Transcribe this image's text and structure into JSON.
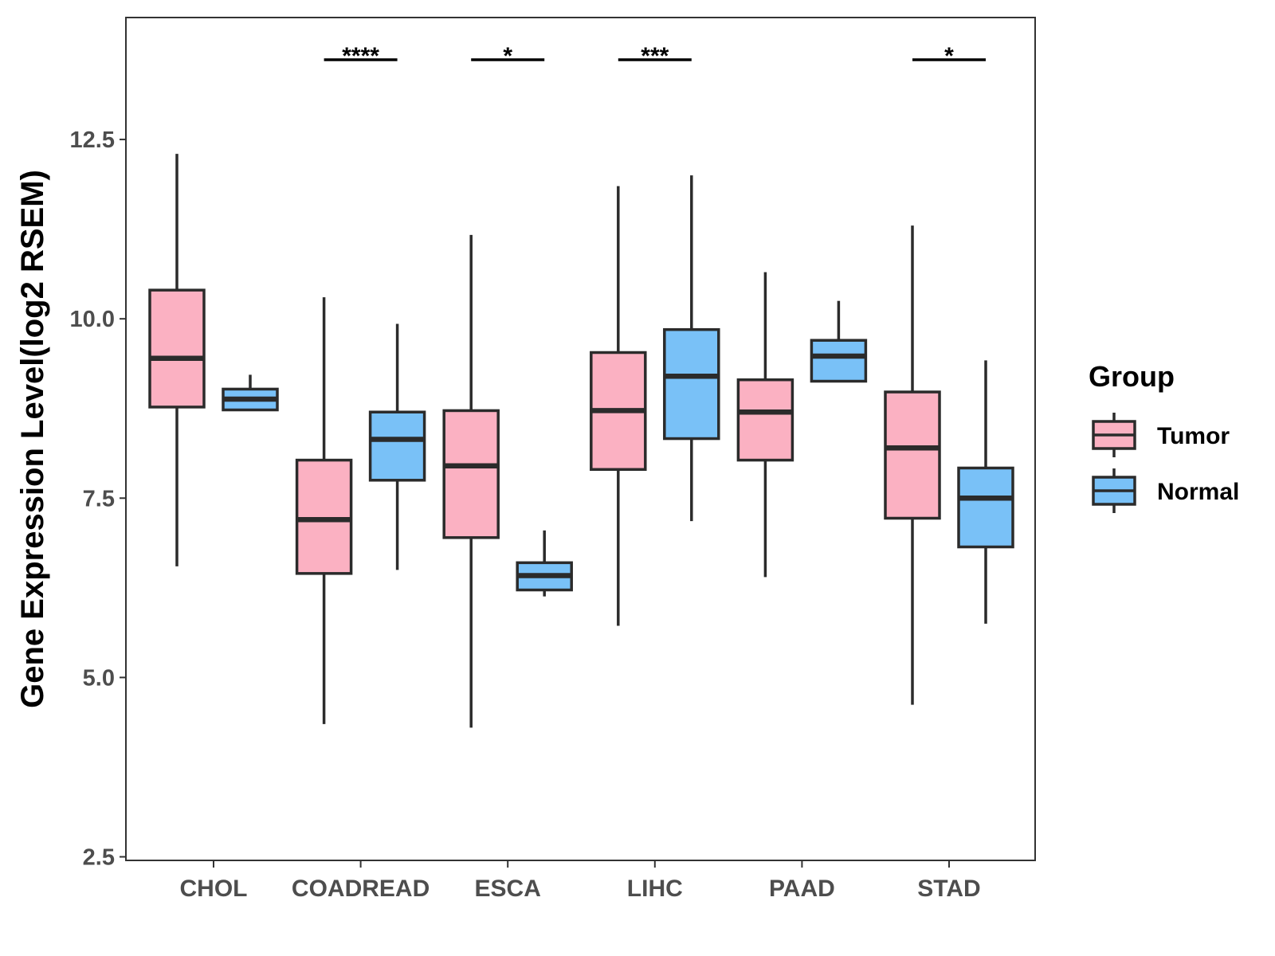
{
  "chart_data": {
    "type": "boxplot",
    "ylabel": "Gene Expression Level(log2 RSEM)",
    "xlabel": "",
    "ylim": [
      2.45,
      14.2
    ],
    "yticks": [
      2.5,
      5.0,
      7.5,
      10.0,
      12.5
    ],
    "ytick_labels": [
      "2.5",
      "5.0",
      "7.5",
      "10.0",
      "12.5"
    ],
    "categories": [
      "CHOL",
      "COADREAD",
      "ESCA",
      "LIHC",
      "PAAD",
      "STAD"
    ],
    "legend": {
      "title": "Group",
      "position": "right",
      "entries": [
        {
          "name": "Tumor",
          "color": "#fbb1c2"
        },
        {
          "name": "Normal",
          "color": "#79c1f7"
        }
      ]
    },
    "series": [
      {
        "name": "Tumor",
        "color": "#fbb1c2",
        "boxes": [
          {
            "category": "CHOL",
            "whisker_low": 6.55,
            "q1": 8.77,
            "median": 9.45,
            "q3": 10.4,
            "whisker_high": 12.3
          },
          {
            "category": "COADREAD",
            "whisker_low": 4.35,
            "q1": 6.45,
            "median": 7.2,
            "q3": 8.03,
            "whisker_high": 10.3
          },
          {
            "category": "ESCA",
            "whisker_low": 4.3,
            "q1": 6.95,
            "median": 7.95,
            "q3": 8.72,
            "whisker_high": 11.17
          },
          {
            "category": "LIHC",
            "whisker_low": 5.72,
            "q1": 7.9,
            "median": 8.72,
            "q3": 9.53,
            "whisker_high": 11.85
          },
          {
            "category": "PAAD",
            "whisker_low": 6.4,
            "q1": 8.03,
            "median": 8.7,
            "q3": 9.15,
            "whisker_high": 10.65
          },
          {
            "category": "STAD",
            "whisker_low": 4.62,
            "q1": 7.22,
            "median": 8.2,
            "q3": 8.98,
            "whisker_high": 11.3
          }
        ]
      },
      {
        "name": "Normal",
        "color": "#79c1f7",
        "boxes": [
          {
            "category": "CHOL",
            "whisker_low": 8.73,
            "q1": 8.73,
            "median": 8.88,
            "q3": 9.02,
            "whisker_high": 9.22
          },
          {
            "category": "COADREAD",
            "whisker_low": 6.5,
            "q1": 7.75,
            "median": 8.32,
            "q3": 8.7,
            "whisker_high": 9.93
          },
          {
            "category": "ESCA",
            "whisker_low": 6.13,
            "q1": 6.22,
            "median": 6.42,
            "q3": 6.6,
            "whisker_high": 7.05
          },
          {
            "category": "LIHC",
            "whisker_low": 7.18,
            "q1": 8.33,
            "median": 9.2,
            "q3": 9.85,
            "whisker_high": 12.0
          },
          {
            "category": "PAAD",
            "whisker_low": 9.13,
            "q1": 9.13,
            "median": 9.48,
            "q3": 9.7,
            "whisker_high": 10.25
          },
          {
            "category": "STAD",
            "whisker_low": 5.75,
            "q1": 6.82,
            "median": 7.5,
            "q3": 7.92,
            "whisker_high": 9.42
          }
        ]
      }
    ],
    "annotations": [
      {
        "category": "COADREAD",
        "label": "****"
      },
      {
        "category": "ESCA",
        "label": "*"
      },
      {
        "category": "LIHC",
        "label": "***"
      },
      {
        "category": "STAD",
        "label": "*"
      }
    ],
    "grid": false
  }
}
